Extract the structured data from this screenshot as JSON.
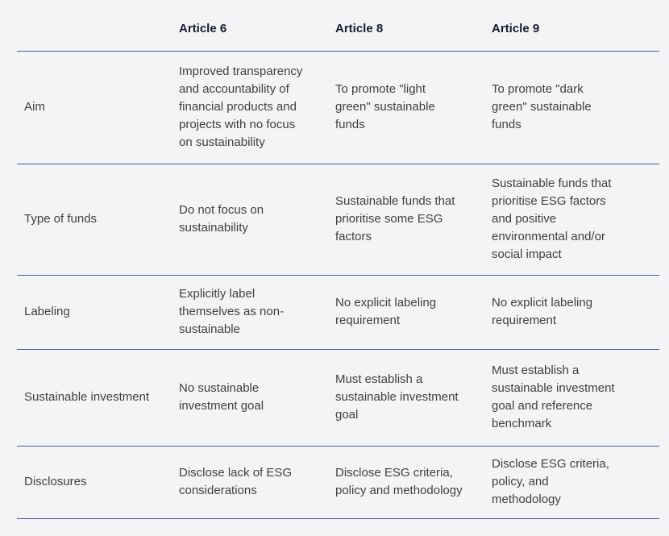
{
  "table": {
    "columns": [
      "",
      "Article 6",
      "Article 8",
      "Article 9"
    ],
    "rows": [
      {
        "label": "Aim",
        "article6": "Improved transparency\nand accountability of\nfinancial products and\nprojects with no focus\non sustainability",
        "article8": "To promote \"light\ngreen\" sustainable\nfunds",
        "article9": "To promote \"dark\ngreen\" sustainable\nfunds"
      },
      {
        "label": "Type of funds",
        "article6": "Do not focus on\nsustainability",
        "article8": "Sustainable funds that\nprioritise some ESG\nfactors",
        "article9": "Sustainable funds that\nprioritise ESG factors\nand positive\nenvironmental and/or\nsocial impact"
      },
      {
        "label": "Labeling",
        "article6": "Explicitly label\nthemselves as non-\nsustainable",
        "article8": "No explicit labeling\nrequirement",
        "article9": "No explicit labeling\nrequirement"
      },
      {
        "label": "Sustainable investment",
        "article6": "No sustainable\ninvestment goal",
        "article8": "Must establish a\nsustainable investment\ngoal",
        "article9": "Must establish a\nsustainable investment\ngoal and reference\nbenchmark"
      },
      {
        "label": "Disclosures",
        "article6": "Disclose lack of ESG\nconsiderations",
        "article8": "Disclose ESG criteria,\npolicy and methodology",
        "article9": "Disclose ESG criteria,\npolicy, and\nmethodology"
      }
    ]
  },
  "colors": {
    "background": "#f4f4f6",
    "divider": "#4b5694",
    "header_text": "#181a30",
    "body_text": "#3f3f41"
  }
}
